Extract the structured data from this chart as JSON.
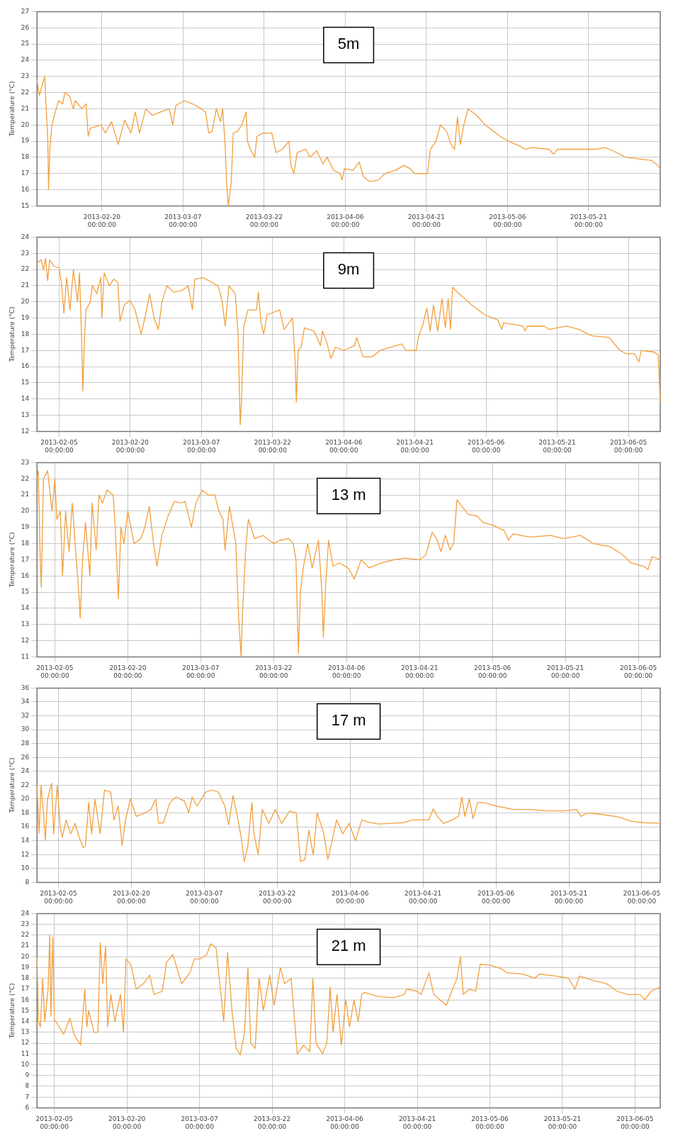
{
  "chart_data": [
    {
      "type": "line",
      "title": "5m",
      "ylabel": "Temperature (°C)",
      "color": "#f2a03d",
      "grid": true,
      "xlim": [
        "2013-02-08T00:00",
        "2013-06-03T06:00"
      ],
      "ylim": [
        15,
        27
      ],
      "yticks": [
        15,
        16,
        17,
        18,
        19,
        20,
        21,
        22,
        23,
        24,
        25,
        26,
        27
      ],
      "xticks": [
        {
          "value": "2013-02-20",
          "label": "2013-02-20 00:00:00"
        },
        {
          "value": "2013-03-07",
          "label": "2013-03-07 00:00:00"
        },
        {
          "value": "2013-03-22",
          "label": "2013-03-22 00:00:00"
        },
        {
          "value": "2013-04-06",
          "label": "2013-04-06 00:00:00"
        },
        {
          "value": "2013-04-21",
          "label": "2013-04-21 00:00:00"
        },
        {
          "value": "2013-05-06",
          "label": "2013-05-06 00:00:00"
        },
        {
          "value": "2013-05-21",
          "label": "2013-05-21 00:00:00"
        }
      ],
      "x": [
        "2013-02-08T00:00",
        "2013-02-08T10:00",
        "2013-02-09T10:00",
        "2013-02-10T00:00",
        "2013-02-10T03:00",
        "2013-02-10T09:00",
        "2013-02-10T18:00",
        "2013-02-11T13:00",
        "2013-02-12T00:00",
        "2013-02-12T18:00",
        "2013-02-13T03:00",
        "2013-02-14T00:00",
        "2013-02-14T17:00",
        "2013-02-15T02:00",
        "2013-02-16T07:00",
        "2013-02-17T02:00",
        "2013-02-17T11:00",
        "2013-02-17T21:00",
        "2013-02-19T20:00",
        "2013-02-20T15:00",
        "2013-02-21T19:00",
        "2013-02-23T00:00",
        "2013-02-24T05:00",
        "2013-02-25T09:00",
        "2013-02-26T04:00",
        "2013-02-26T23:00",
        "2013-02-28T03:00",
        "2013-03-01T07:00",
        "2013-03-02T21:00",
        "2013-03-04T11:00",
        "2013-03-05T02:00",
        "2013-03-05T16:00",
        "2013-03-07T06:00",
        "2013-03-08T19:00",
        "2013-03-10T09:00",
        "2013-03-11T04:00",
        "2013-03-11T18:00",
        "2013-03-12T09:00",
        "2013-03-13T04:00",
        "2013-03-13T23:00",
        "2013-03-14T08:00",
        "2013-03-14T18:00",
        "2013-03-15T03:00",
        "2013-03-15T09:00",
        "2013-03-15T22:00",
        "2013-03-16T07:00",
        "2013-03-17T02:00",
        "2013-03-17T21:00",
        "2013-03-18T16:00",
        "2013-03-18T22:00",
        "2013-03-19T11:00",
        "2013-03-20T06:00",
        "2013-03-20T16:00",
        "2013-03-21T20:00",
        "2013-03-23T10:00",
        "2013-03-24T05:00",
        "2013-03-25T09:00",
        "2013-03-26T14:00",
        "2013-03-26T23:00",
        "2013-03-27T12:00",
        "2013-03-28T03:00",
        "2013-03-29T17:00",
        "2013-03-30T12:00",
        "2013-03-31T17:00",
        "2013-04-01T21:00",
        "2013-04-02T16:00",
        "2013-04-03T20:00",
        "2013-04-05T01:00",
        "2013-04-05T10:00",
        "2013-04-05T20:00",
        "2013-04-07T10:00",
        "2013-04-08T14:00",
        "2013-04-09T09:00",
        "2013-04-10T13:00",
        "2013-04-12T03:00",
        "2013-04-13T08:00",
        "2013-04-15T07:00",
        "2013-04-16T21:00",
        "2013-04-18T01:00",
        "2013-04-18T20:00",
        "2013-04-21T05:00",
        "2013-04-21T18:00",
        "2013-04-22T19:00",
        "2013-04-23T14:00",
        "2013-04-24T18:00",
        "2013-04-25T13:00",
        "2013-04-26T05:00",
        "2013-04-26T18:00",
        "2013-04-27T07:00",
        "2013-04-27T22:00",
        "2013-04-28T17:00",
        "2013-04-30T07:00",
        "2013-05-01T21:00",
        "2013-05-03T11:00",
        "2013-05-04T15:00",
        "2013-05-06T05:00",
        "2013-05-08T05:00",
        "2013-05-09T09:00",
        "2013-05-10T13:00",
        "2013-05-13T17:00",
        "2013-05-14T12:00",
        "2013-05-15T07:00",
        "2013-05-18T11:00",
        "2013-05-22T10:00",
        "2013-05-24T00:00",
        "2013-05-25T13:00",
        "2013-05-27T22:00",
        "2013-05-30T07:00",
        "2013-06-01T16:00",
        "2013-06-02T20:00",
        "2013-06-03T06:00"
      ],
      "values": [
        22.8,
        21.8,
        23.0,
        19.0,
        16.0,
        18.5,
        20.0,
        21.0,
        21.5,
        21.3,
        22.0,
        21.8,
        21.0,
        21.5,
        21.0,
        21.3,
        19.3,
        19.8,
        20.0,
        19.5,
        20.2,
        18.8,
        20.3,
        19.5,
        20.8,
        19.5,
        21.0,
        20.6,
        20.8,
        21.0,
        20.0,
        21.2,
        21.5,
        21.3,
        21.0,
        20.8,
        19.5,
        19.6,
        21.0,
        20.2,
        21.0,
        19.0,
        16.0,
        15.0,
        16.5,
        19.5,
        19.6,
        20.0,
        20.8,
        19.0,
        18.5,
        18.0,
        19.3,
        19.5,
        19.5,
        18.3,
        18.5,
        19.0,
        17.5,
        17.0,
        18.3,
        18.5,
        18.0,
        18.4,
        17.6,
        18.0,
        17.2,
        17.0,
        16.6,
        17.3,
        17.2,
        17.7,
        16.8,
        16.5,
        16.6,
        17.0,
        17.2,
        17.5,
        17.3,
        17.0,
        17.0,
        18.5,
        19.0,
        20.0,
        19.6,
        18.8,
        18.5,
        20.5,
        18.8,
        20.0,
        21.0,
        20.6,
        20.0,
        19.6,
        19.3,
        19.0,
        18.7,
        18.5,
        18.6,
        18.5,
        18.2,
        18.5,
        18.5,
        18.5,
        18.6,
        18.4,
        18.0,
        17.9,
        17.8,
        17.5,
        17.3
      ]
    },
    {
      "type": "line",
      "title": "9m",
      "ylabel": "Temperature (°C)",
      "color": "#f2a03d",
      "grid": true,
      "xlim": [
        "2013-01-31T08:00",
        "2013-06-11T17:00"
      ],
      "ylim": [
        12,
        24
      ],
      "yticks": [
        12,
        13,
        14,
        15,
        16,
        17,
        18,
        19,
        20,
        21,
        22,
        23,
        24
      ],
      "xticks": [
        {
          "value": "2013-02-05",
          "label": "2013-02-05 00:00:00"
        },
        {
          "value": "2013-02-20",
          "label": "2013-02-20 00:00:00"
        },
        {
          "value": "2013-03-07",
          "label": "2013-03-07 00:00:00"
        },
        {
          "value": "2013-03-22",
          "label": "2013-03-22 00:00:00"
        },
        {
          "value": "2013-04-06",
          "label": "2013-04-06 00:00:00"
        },
        {
          "value": "2013-04-21",
          "label": "2013-04-21 00:00:00"
        },
        {
          "value": "2013-05-06",
          "label": "2013-05-06 00:00:00"
        },
        {
          "value": "2013-05-21",
          "label": "2013-05-21 00:00:00"
        },
        {
          "value": "2013-06-05",
          "label": "2013-06-05 00:00:00"
        }
      ],
      "x": [
        "2013-01-31T08:00",
        "2013-02-01T05:00",
        "2013-02-01T17:00",
        "2013-02-02T03:00",
        "2013-02-02T14:00",
        "2013-02-03T00:00",
        "2013-02-03T22:00",
        "2013-02-05T00:00",
        "2013-02-05T13:00",
        "2013-02-06T00:00",
        "2013-02-06T14:00",
        "2013-02-07T07:00",
        "2013-02-08T00:00",
        "2013-02-08T21:00",
        "2013-02-09T07:00",
        "2013-02-09T18:00",
        "2013-02-10T00:00",
        "2013-02-10T09:00",
        "2013-02-10T16:00",
        "2013-02-11T13:00",
        "2013-02-12T00:00",
        "2013-02-12T22:00",
        "2013-02-13T19:00",
        "2013-02-14T00:00",
        "2013-02-14T12:00",
        "2013-02-15T14:00",
        "2013-02-16T12:00",
        "2013-02-17T09:00",
        "2013-02-17T20:00",
        "2013-02-18T17:00",
        "2013-02-19T22:00",
        "2013-02-21T00:00",
        "2013-02-22T07:00",
        "2013-02-23T05:00",
        "2013-02-24T02:00",
        "2013-02-25T00:00",
        "2013-02-25T22:00",
        "2013-02-26T16:00",
        "2013-02-27T17:00",
        "2013-03-01T02:00",
        "2013-03-02T21:00",
        "2013-03-04T05:00",
        "2013-03-05T02:00",
        "2013-03-05T14:00",
        "2013-03-07T09:00",
        "2013-03-09T05:00",
        "2013-03-10T12:00",
        "2013-03-11T09:00",
        "2013-03-12T00:00",
        "2013-03-12T19:00",
        "2013-03-14T03:00",
        "2013-03-14T17:00",
        "2013-03-15T04:00",
        "2013-03-15T11:00",
        "2013-03-15T22:00",
        "2013-03-16T19:00",
        "2013-03-18T14:00",
        "2013-03-19T00:00",
        "2013-03-19T12:00",
        "2013-03-20T03:00",
        "2013-03-20T20:00",
        "2013-03-22T14:00",
        "2013-03-23T12:00",
        "2013-03-24T10:00",
        "2013-03-26T05:00",
        "2013-03-26T19:00",
        "2013-03-27T00:00",
        "2013-03-27T09:00",
        "2013-03-28T00:00",
        "2013-03-28T17:00",
        "2013-03-30T17:00",
        "2013-04-01T02:00",
        "2013-04-01T12:00",
        "2013-04-02T10:00",
        "2013-04-03T07:00",
        "2013-04-04T05:00",
        "2013-04-06T00:00",
        "2013-04-08T07:00",
        "2013-04-08T17:00",
        "2013-04-10T02:00",
        "2013-04-11T22:00",
        "2013-04-13T17:00",
        "2013-04-15T22:00",
        "2013-04-18T05:00",
        "2013-04-19T02:00",
        "2013-04-21T07:00",
        "2013-04-21T17:00",
        "2013-04-22T14:00",
        "2013-04-23T12:00",
        "2013-04-24T05:00",
        "2013-04-24T22:00",
        "2013-04-25T19:00",
        "2013-04-26T17:00",
        "2013-04-27T10:00",
        "2013-04-28T00:00",
        "2013-04-28T12:00",
        "2013-04-28T22:00",
        "2013-04-30T07:00",
        "2013-05-03T00:00",
        "2013-05-05T17:00",
        "2013-05-08T10:00",
        "2013-05-09T07:00",
        "2013-05-09T17:00",
        "2013-05-13T19:00",
        "2013-05-14T05:00",
        "2013-05-14T17:00",
        "2013-05-18T07:00",
        "2013-05-19T05:00",
        "2013-05-22T22:00",
        "2013-05-25T14:00",
        "2013-05-28T07:00",
        "2013-05-31T22:00",
        "2013-06-03T05:00",
        "2013-06-04T12:00",
        "2013-06-06T07:00",
        "2013-06-07T05:00",
        "2013-06-07T17:00",
        "2013-06-10T10:00",
        "2013-06-11T07:00",
        "2013-06-11T17:00"
      ],
      "values": [
        22.4,
        22.6,
        22.0,
        22.7,
        21.3,
        22.6,
        22.2,
        22.1,
        21.0,
        19.3,
        21.5,
        19.5,
        22.0,
        20.0,
        21.8,
        17.5,
        14.5,
        18.0,
        19.5,
        20.0,
        21.0,
        20.5,
        21.5,
        19.0,
        21.8,
        21.0,
        21.4,
        21.2,
        18.8,
        19.8,
        20.1,
        19.5,
        18.0,
        19.2,
        20.5,
        19.0,
        18.3,
        20.0,
        21.0,
        20.6,
        20.7,
        21.0,
        19.5,
        21.4,
        21.5,
        21.2,
        21.0,
        20.0,
        18.5,
        21.0,
        20.5,
        18.0,
        12.4,
        14.0,
        18.5,
        19.5,
        19.5,
        20.6,
        18.8,
        18.0,
        19.2,
        19.4,
        19.5,
        18.3,
        19.0,
        16.0,
        13.8,
        17.0,
        17.2,
        18.4,
        18.2,
        17.3,
        18.2,
        17.5,
        16.5,
        17.2,
        17.0,
        17.3,
        17.8,
        16.6,
        16.6,
        17.0,
        17.2,
        17.4,
        17.0,
        17.0,
        17.8,
        18.5,
        19.6,
        18.2,
        19.8,
        18.2,
        20.2,
        18.4,
        20.2,
        18.3,
        20.9,
        20.5,
        19.8,
        19.2,
        18.9,
        18.3,
        18.7,
        18.5,
        18.2,
        18.5,
        18.5,
        18.3,
        18.5,
        18.3,
        17.9,
        17.8,
        17.0,
        16.8,
        16.8,
        16.3,
        17.0,
        16.9,
        16.7,
        13.8
      ]
    },
    {
      "type": "line",
      "title": "13 m",
      "ylabel": "Temperature (°C)",
      "color": "#f2a03d",
      "grid": true,
      "xlim": [
        "2013-02-01T08:00",
        "2013-06-09T12:00"
      ],
      "ylim": [
        11,
        23
      ],
      "yticks": [
        11,
        12,
        13,
        14,
        15,
        16,
        17,
        18,
        19,
        20,
        21,
        22,
        23
      ],
      "xticks": [
        {
          "value": "2013-02-05",
          "label": "2013-02-05 00:00:00"
        },
        {
          "value": "2013-02-20",
          "label": "2013-02-20 00:00:00"
        },
        {
          "value": "2013-03-07",
          "label": "2013-03-07 00:00:00"
        },
        {
          "value": "2013-03-22",
          "label": "2013-03-22 00:00:00"
        },
        {
          "value": "2013-04-06",
          "label": "2013-04-06 00:00:00"
        },
        {
          "value": "2013-04-21",
          "label": "2013-04-21 00:00:00"
        },
        {
          "value": "2013-05-06",
          "label": "2013-05-06 00:00:00"
        },
        {
          "value": "2013-05-21",
          "label": "2013-05-21 00:00:00"
        },
        {
          "value": "2013-06-05",
          "label": "2013-06-05 00:00:00"
        }
      ],
      "x": [
        "2013-02-01T08:00",
        "2013-02-01T14:00",
        "2013-02-02T00:00",
        "2013-02-02T05:00",
        "2013-02-02T16:00",
        "2013-02-03T12:00",
        "2013-02-04T10:00",
        "2013-02-05T00:00",
        "2013-02-05T10:00",
        "2013-02-06T03:00",
        "2013-02-06T14:00",
        "2013-02-07T05:00",
        "2013-02-07T22:00",
        "2013-02-08T14:00",
        "2013-02-09T10:00",
        "2013-02-09T22:00",
        "2013-02-10T05:00",
        "2013-02-10T17:00",
        "2013-02-11T07:00",
        "2013-02-12T05:00",
        "2013-02-12T16:00",
        "2013-02-13T12:00",
        "2013-02-14T02:00",
        "2013-02-14T19:00",
        "2013-02-15T17:00",
        "2013-02-17T00:00",
        "2013-02-17T10:00",
        "2013-02-18T02:00",
        "2013-02-18T14:00",
        "2013-02-19T05:00",
        "2013-02-20T00:00",
        "2013-02-21T07:00",
        "2013-02-22T16:00",
        "2013-02-23T12:00",
        "2013-02-24T10:00",
        "2013-02-25T07:00",
        "2013-02-26T00:00",
        "2013-02-27T00:00",
        "2013-02-28T07:00",
        "2013-03-01T14:00",
        "2013-03-02T22:00",
        "2013-03-03T19:00",
        "2013-03-05T02:00",
        "2013-03-06T00:00",
        "2013-03-07T07:00",
        "2013-03-08T14:00",
        "2013-03-09T22:00",
        "2013-03-10T17:00",
        "2013-03-11T14:00",
        "2013-03-12T00:00",
        "2013-03-12T22:00",
        "2013-03-14T05:00",
        "2013-03-14T19:00",
        "2013-03-15T07:00",
        "2013-03-15T12:00",
        "2013-03-16T05:00",
        "2013-03-16T19:00",
        "2013-03-18T02:00",
        "2013-03-19T19:00",
        "2013-03-22T00:00",
        "2013-03-23T07:00",
        "2013-03-25T02:00",
        "2013-03-26T00:00",
        "2013-03-26T14:00",
        "2013-03-27T02:00",
        "2013-03-27T12:00",
        "2013-03-28T02:00",
        "2013-03-29T00:00",
        "2013-03-29T22:00",
        "2013-03-31T05:00",
        "2013-03-31T22:00",
        "2013-04-01T05:00",
        "2013-04-01T17:00",
        "2013-04-02T07:00",
        "2013-04-03T05:00",
        "2013-04-04T12:00",
        "2013-04-06T07:00",
        "2013-04-07T14:00",
        "2013-04-09T00:00",
        "2013-04-10T14:00",
        "2013-04-13T05:00",
        "2013-04-15T19:00",
        "2013-04-18T00:00",
        "2013-04-21T00:00",
        "2013-04-22T07:00",
        "2013-04-23T14:00",
        "2013-04-24T12:00",
        "2013-04-25T10:00",
        "2013-04-26T07:00",
        "2013-04-27T07:00",
        "2013-04-28T00:00",
        "2013-04-28T17:00",
        "2013-04-29T17:00",
        "2013-05-01T00:00",
        "2013-05-02T19:00",
        "2013-05-04T02:00",
        "2013-05-06T07:00",
        "2013-05-08T10:00",
        "2013-05-09T07:00",
        "2013-05-10T05:00",
        "2013-05-13T17:00",
        "2013-05-18T00:00",
        "2013-05-20T14:00",
        "2013-05-24T02:00",
        "2013-05-26T17:00",
        "2013-05-30T05:00",
        "2013-06-01T19:00",
        "2013-06-03T12:00",
        "2013-06-06T02:00",
        "2013-06-07T00:00",
        "2013-06-07T19:00",
        "2013-06-09T12:00"
      ],
      "values": [
        22.0,
        22.5,
        17.0,
        15.3,
        22.0,
        22.5,
        20.0,
        22.0,
        19.5,
        20.0,
        16.0,
        20.0,
        17.5,
        20.5,
        17.0,
        15.0,
        13.4,
        17.0,
        19.3,
        16.0,
        20.5,
        17.6,
        21.0,
        20.5,
        21.3,
        21.0,
        19.0,
        14.6,
        19.0,
        18.0,
        20.0,
        18.0,
        18.3,
        19.0,
        20.3,
        18.0,
        16.6,
        18.5,
        19.7,
        20.6,
        20.5,
        20.6,
        19.0,
        20.5,
        21.3,
        21.0,
        21.0,
        20.0,
        19.5,
        17.6,
        20.3,
        18.0,
        13.5,
        11.0,
        13.0,
        17.5,
        19.5,
        18.3,
        18.5,
        18.0,
        18.2,
        18.3,
        18.0,
        17.0,
        11.2,
        15.0,
        16.5,
        18.0,
        16.5,
        18.2,
        15.0,
        12.2,
        15.5,
        18.2,
        16.6,
        16.8,
        16.5,
        15.8,
        17.0,
        16.5,
        16.8,
        17.0,
        17.1,
        17.0,
        17.3,
        18.7,
        18.3,
        17.5,
        18.5,
        17.6,
        18.0,
        20.7,
        20.3,
        19.8,
        19.7,
        19.3,
        19.1,
        18.8,
        18.2,
        18.6,
        18.4,
        18.5,
        18.3,
        18.5,
        18.0,
        17.8,
        17.3,
        16.8,
        16.6,
        16.4,
        17.2,
        17.0
      ]
    },
    {
      "type": "line",
      "title": "17 m",
      "ylabel": "Temperature (°C)",
      "color": "#f2a03d",
      "grid": true,
      "xlim": [
        "2013-01-31T14:00",
        "2013-06-08T19:00"
      ],
      "ylim": [
        8,
        36
      ],
      "yticks": [
        8,
        10,
        12,
        14,
        16,
        18,
        20,
        22,
        24,
        26,
        28,
        30,
        32,
        34,
        36
      ],
      "xticks": [
        {
          "value": "2013-02-05",
          "label": "2013-02-05 00:00:00"
        },
        {
          "value": "2013-02-20",
          "label": "2013-02-20 00:00:00"
        },
        {
          "value": "2013-03-07",
          "label": "2013-03-07 00:00:00"
        },
        {
          "value": "2013-03-22",
          "label": "2013-03-22 00:00:00"
        },
        {
          "value": "2013-04-06",
          "label": "2013-04-06 00:00:00"
        },
        {
          "value": "2013-04-21",
          "label": "2013-04-21 00:00:00"
        },
        {
          "value": "2013-05-06",
          "label": "2013-05-06 00:00:00"
        },
        {
          "value": "2013-05-21",
          "label": "2013-05-21 00:00:00"
        },
        {
          "value": "2013-06-05",
          "label": "2013-06-05 00:00:00"
        }
      ],
      "x": [
        "2013-01-31T14:00",
        "2013-02-01T00:00",
        "2013-02-01T10:00",
        "2013-02-01T22:00",
        "2013-02-02T07:00",
        "2013-02-02T18:00",
        "2013-02-03T14:00",
        "2013-02-04T00:00",
        "2013-02-04T18:00",
        "2013-02-05T08:00",
        "2013-02-05T19:00",
        "2013-02-06T14:00",
        "2013-02-07T12:00",
        "2013-02-08T10:00",
        "2013-02-09T06:00",
        "2013-02-10T02:00",
        "2013-02-10T13:00",
        "2013-02-11T05:00",
        "2013-02-11T20:00",
        "2013-02-12T12:00",
        "2013-02-13T14:00",
        "2013-02-14T11:00",
        "2013-02-15T18:00",
        "2013-02-16T10:00",
        "2013-02-17T07:00",
        "2013-02-18T02:00",
        "2013-02-18T19:00",
        "2013-02-19T19:00",
        "2013-02-21T00:00",
        "2013-02-22T17:00",
        "2013-02-24T00:00",
        "2013-02-25T00:00",
        "2013-02-25T14:00",
        "2013-02-26T14:00",
        "2013-02-27T22:00",
        "2013-03-01T05:00",
        "2013-03-02T22:00",
        "2013-03-03T19:00",
        "2013-03-04T12:00",
        "2013-03-05T12:00",
        "2013-03-07T07:00",
        "2013-03-08T14:00",
        "2013-03-09T22:00",
        "2013-03-11T05:00",
        "2013-03-12T00:00",
        "2013-03-12T22:00",
        "2013-03-13T19:00",
        "2013-03-14T14:00",
        "2013-03-15T05:00",
        "2013-03-15T22:00",
        "2013-03-16T19:00",
        "2013-03-17T05:00",
        "2013-03-18T02:00",
        "2013-03-18T22:00",
        "2013-03-20T07:00",
        "2013-03-21T14:00",
        "2013-03-22T22:00",
        "2013-03-24T14:00",
        "2013-03-25T22:00",
        "2013-03-26T19:00",
        "2013-03-27T17:00",
        "2013-03-28T12:00",
        "2013-03-29T10:00",
        "2013-03-30T05:00",
        "2013-03-31T14:00",
        "2013-04-01T10:00",
        "2013-04-02T07:00",
        "2013-04-03T05:00",
        "2013-04-04T12:00",
        "2013-04-05T19:00",
        "2013-04-07T02:00",
        "2013-04-08T10:00",
        "2013-04-09T17:00",
        "2013-04-11T19:00",
        "2013-04-14T10:00",
        "2013-04-17T00:00",
        "2013-04-18T19:00",
        "2013-04-22T05:00",
        "2013-04-23T02:00",
        "2013-04-23T22:00",
        "2013-04-25T05:00",
        "2013-04-27T00:00",
        "2013-04-28T07:00",
        "2013-04-29T00:00",
        "2013-04-29T14:00",
        "2013-04-30T12:00",
        "2013-05-01T07:00",
        "2013-05-02T05:00",
        "2013-05-03T12:00",
        "2013-05-06T02:00",
        "2013-05-09T14:00",
        "2013-05-13T02:00",
        "2013-05-16T12:00",
        "2013-05-20T00:00",
        "2013-05-22T14:00",
        "2013-05-23T12:00",
        "2013-05-24T19:00",
        "2013-05-27T19:00",
        "2013-05-31T07:00",
        "2013-06-02T22:00",
        "2013-06-05T12:00",
        "2013-06-08T19:00"
      ],
      "values": [
        22.0,
        15.1,
        22.0,
        18.0,
        14.0,
        20.0,
        22.3,
        15.0,
        22.0,
        16.0,
        14.5,
        17.0,
        15.0,
        16.5,
        14.5,
        13.0,
        13.2,
        19.5,
        15.0,
        20.0,
        15.0,
        21.3,
        21.0,
        17.0,
        19.0,
        13.3,
        17.0,
        20.0,
        17.5,
        18.0,
        18.5,
        20.0,
        16.5,
        16.6,
        19.5,
        20.3,
        19.7,
        18.0,
        20.3,
        19.0,
        21.0,
        21.3,
        21.0,
        19.0,
        16.3,
        20.5,
        17.5,
        14.5,
        11.0,
        13.0,
        19.5,
        15.0,
        12.0,
        18.5,
        16.5,
        18.5,
        16.5,
        18.3,
        18.0,
        11.0,
        11.3,
        15.5,
        12.0,
        18.0,
        15.0,
        11.3,
        14.0,
        17.0,
        15.0,
        16.5,
        14.0,
        17.0,
        16.7,
        16.4,
        16.5,
        16.6,
        17.0,
        17.0,
        18.6,
        17.5,
        16.5,
        17.0,
        17.5,
        20.3,
        17.5,
        20.0,
        17.2,
        19.5,
        19.5,
        19.0,
        18.5,
        18.5,
        18.3,
        18.3,
        18.5,
        17.5,
        18.0,
        17.8,
        17.4,
        16.8,
        16.6,
        16.5
      ]
    },
    {
      "type": "line",
      "title": "21 m",
      "ylabel": "Temperature (°C)",
      "color": "#f2a03d",
      "grid": true,
      "xlim": [
        "2013-02-01T10:00",
        "2013-06-10T05:00"
      ],
      "ylim": [
        6,
        24
      ],
      "yticks": [
        6,
        7,
        8,
        9,
        10,
        11,
        12,
        13,
        14,
        15,
        16,
        17,
        18,
        19,
        20,
        21,
        22,
        23,
        24
      ],
      "xticks": [
        {
          "value": "2013-02-05",
          "label": "2013-02-05 00:00:00"
        },
        {
          "value": "2013-02-20",
          "label": "2013-02-20 00:00:00"
        },
        {
          "value": "2013-03-07",
          "label": "2013-03-07 00:00:00"
        },
        {
          "value": "2013-03-22",
          "label": "2013-03-22 00:00:00"
        },
        {
          "value": "2013-04-06",
          "label": "2013-04-06 00:00:00"
        },
        {
          "value": "2013-04-21",
          "label": "2013-04-21 00:00:00"
        },
        {
          "value": "2013-05-06",
          "label": "2013-05-06 00:00:00"
        },
        {
          "value": "2013-05-21",
          "label": "2013-05-21 00:00:00"
        },
        {
          "value": "2013-06-05",
          "label": "2013-06-05 00:00:00"
        }
      ],
      "x": [
        "2013-02-01T10:00",
        "2013-02-01T17:00",
        "2013-02-02T03:00",
        "2013-02-02T14:00",
        "2013-02-03T00:00",
        "2013-02-03T17:00",
        "2013-02-04T01:00",
        "2013-02-04T07:00",
        "2013-02-04T16:00",
        "2013-02-05T00:00",
        "2013-02-06T00:00",
        "2013-02-06T22:00",
        "2013-02-08T05:00",
        "2013-02-09T02:00",
        "2013-02-10T10:00",
        "2013-02-11T07:00",
        "2013-02-11T17:00",
        "2013-02-12T02:00",
        "2013-02-13T05:00",
        "2013-02-14T00:00",
        "2013-02-14T12:00",
        "2013-02-15T00:00",
        "2013-02-15T14:00",
        "2013-02-16T00:00",
        "2013-02-16T16:00",
        "2013-02-17T12:00",
        "2013-02-18T16:00",
        "2013-02-19T07:00",
        "2013-02-19T19:00",
        "2013-02-20T19:00",
        "2013-02-21T22:00",
        "2013-02-23T10:00",
        "2013-02-24T17:00",
        "2013-02-25T14:00",
        "2013-02-27T07:00",
        "2013-02-28T05:00",
        "2013-03-01T12:00",
        "2013-03-03T07:00",
        "2013-03-05T00:00",
        "2013-03-05T22:00",
        "2013-03-07T05:00",
        "2013-03-08T12:00",
        "2013-03-09T07:00",
        "2013-03-10T10:00",
        "2013-03-11T02:00",
        "2013-03-12T00:00",
        "2013-03-12T19:00",
        "2013-03-13T17:00",
        "2013-03-14T14:00",
        "2013-03-15T10:00",
        "2013-03-16T07:00",
        "2013-03-17T00:00",
        "2013-03-17T14:00",
        "2013-03-18T12:00",
        "2013-03-19T07:00",
        "2013-03-20T05:00",
        "2013-03-21T12:00",
        "2013-03-22T10:00",
        "2013-03-23T17:00",
        "2013-03-24T14:00",
        "2013-03-25T22:00",
        "2013-03-27T05:00",
        "2013-03-28T12:00",
        "2013-03-29T19:00",
        "2013-03-30T10:00",
        "2013-03-31T02:00",
        "2013-04-01T10:00",
        "2013-04-02T07:00",
        "2013-04-03T00:00",
        "2013-04-03T14:00",
        "2013-04-04T10:00",
        "2013-04-05T07:00",
        "2013-04-06T05:00",
        "2013-04-07T00:00",
        "2013-04-07T22:00",
        "2013-04-08T19:00",
        "2013-04-09T12:00",
        "2013-04-10T02:00",
        "2013-04-13T02:00",
        "2013-04-16T02:00",
        "2013-04-18T07:00",
        "2013-04-18T19:00",
        "2013-04-21T00:00",
        "2013-04-21T19:00",
        "2013-04-23T10:00",
        "2013-04-24T10:00",
        "2013-04-25T17:00",
        "2013-04-27T00:00",
        "2013-04-28T07:00",
        "2013-04-29T05:00",
        "2013-04-29T22:00",
        "2013-04-30T12:00",
        "2013-05-01T19:00",
        "2013-05-03T02:00",
        "2013-05-04T00:00",
        "2013-05-06T05:00",
        "2013-05-08T07:00",
        "2013-05-09T14:00",
        "2013-05-12T17:00",
        "2013-05-15T07:00",
        "2013-05-16T05:00",
        "2013-05-19T17:00",
        "2013-05-22T07:00",
        "2013-05-23T14:00",
        "2013-05-24T12:00",
        "2013-05-27T12:00",
        "2013-05-30T02:00",
        "2013-06-01T07:00",
        "2013-06-03T12:00",
        "2013-06-06T02:00",
        "2013-06-07T00:00",
        "2013-06-08T07:00",
        "2013-06-10T05:00"
      ],
      "values": [
        20.0,
        14.0,
        13.5,
        18.0,
        14.0,
        17.0,
        22.0,
        14.5,
        21.8,
        14.2,
        13.5,
        12.8,
        14.3,
        12.8,
        11.8,
        17.0,
        13.5,
        15.0,
        13.0,
        13.0,
        21.3,
        17.5,
        21.0,
        13.5,
        16.5,
        14.0,
        16.5,
        13.0,
        19.8,
        19.3,
        17.0,
        17.5,
        18.3,
        16.5,
        16.8,
        19.5,
        20.2,
        17.5,
        18.5,
        19.8,
        19.8,
        20.2,
        21.2,
        20.8,
        18.0,
        14.0,
        20.4,
        15.0,
        11.5,
        10.9,
        13.0,
        19.0,
        12.0,
        11.5,
        18.0,
        15.0,
        18.3,
        15.5,
        19.0,
        17.5,
        18.0,
        11.0,
        11.8,
        11.2,
        18.0,
        12.0,
        11.0,
        12.0,
        17.2,
        13.0,
        16.5,
        11.8,
        16.0,
        13.5,
        16.0,
        14.0,
        16.5,
        16.7,
        16.3,
        16.2,
        16.5,
        17.0,
        16.8,
        16.5,
        18.5,
        16.5,
        16.0,
        15.5,
        17.0,
        18.0,
        20.0,
        16.5,
        17.0,
        16.8,
        19.3,
        19.2,
        18.9,
        18.5,
        18.4,
        18.0,
        18.4,
        18.2,
        18.0,
        17.0,
        18.2,
        17.8,
        17.5,
        16.8,
        16.5,
        16.5,
        16.0,
        16.8,
        17.2
      ]
    }
  ]
}
